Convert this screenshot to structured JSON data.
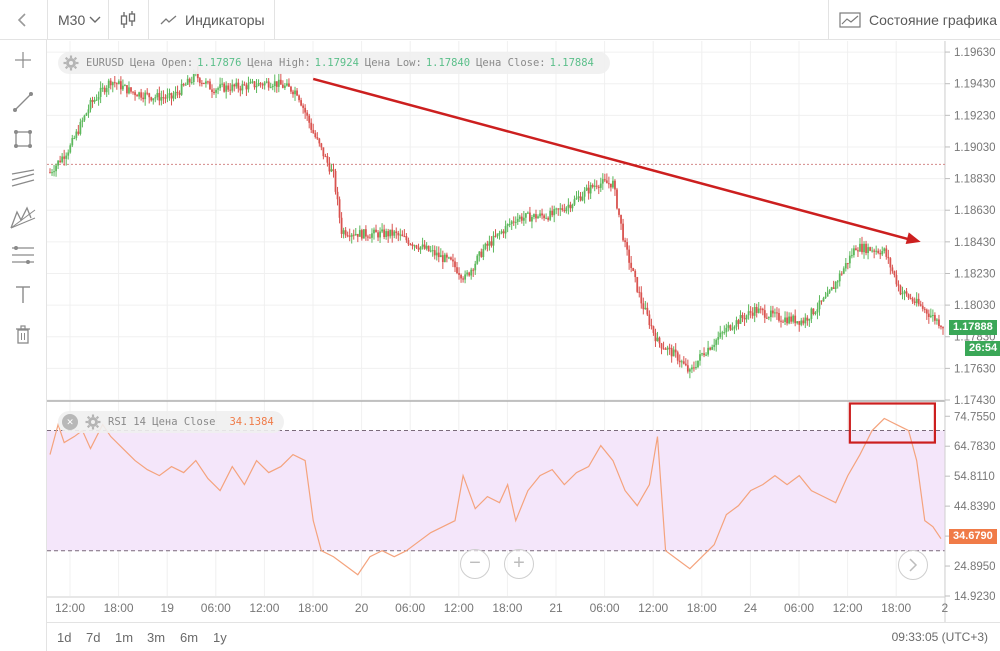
{
  "toolbar": {
    "timeframe": "M30",
    "indicators_label": "Индикаторы",
    "chart_state_label": "Состояние графика"
  },
  "price_legend": {
    "symbol": "EURUSD",
    "open_label": "Цена Open:",
    "open_value": "1.17876",
    "high_label": "Цена High:",
    "high_value": "1.17924",
    "low_label": "Цена Low:",
    "low_value": "1.17840",
    "close_label": "Цена Close:",
    "close_value": "1.17884"
  },
  "rsi_legend": {
    "label": "RSI 14 Цена Close",
    "value": "34.1384"
  },
  "price_axis": {
    "ticks": [
      "1.19630",
      "1.19430",
      "1.19230",
      "1.19030",
      "1.18830",
      "1.18630",
      "1.18430",
      "1.18230",
      "1.18030",
      "1.17830",
      "1.17630",
      "1.17430"
    ],
    "current_price": "1.17888",
    "countdown": "26:54"
  },
  "rsi_axis": {
    "ticks": [
      "74.7550",
      "64.7830",
      "54.8110",
      "44.8390",
      "34.8670",
      "24.8950",
      "14.9230"
    ],
    "current_value": "34.6790"
  },
  "time_axis": {
    "ticks": [
      "12:00",
      "18:00",
      "19",
      "06:00",
      "12:00",
      "18:00",
      "20",
      "06:00",
      "12:00",
      "18:00",
      "21",
      "06:00",
      "12:00",
      "18:00",
      "24",
      "06:00",
      "12:00",
      "18:00",
      "2"
    ]
  },
  "bottom": {
    "ranges": [
      "1d",
      "7d",
      "1m",
      "3m",
      "6m",
      "1y"
    ],
    "clock": "09:33:05 (UTC+3)"
  },
  "colors": {
    "bull": "#5cb85c",
    "bear": "#d9534f",
    "rsi_line": "#f4a37d",
    "rsi_band": "#f4e6fa",
    "arrow": "#cc1f1f",
    "price_tag": "#3aa757",
    "rsi_tag": "#f07b48"
  },
  "chart_data": {
    "type": "candlestick",
    "symbol": "EURUSD",
    "timeframe": "M30",
    "ylim": [
      1.1743,
      1.197
    ],
    "price_profile": [
      [
        0,
        1.1887
      ],
      [
        10,
        1.1903
      ],
      [
        20,
        1.193
      ],
      [
        30,
        1.1945
      ],
      [
        40,
        1.1938
      ],
      [
        50,
        1.1935
      ],
      [
        60,
        1.1934
      ],
      [
        72,
        1.1948
      ],
      [
        80,
        1.194
      ],
      [
        94,
        1.1941
      ],
      [
        110,
        1.1944
      ],
      [
        122,
        1.1938
      ],
      [
        130,
        1.1912
      ],
      [
        140,
        1.1885
      ],
      [
        144,
        1.185
      ],
      [
        154,
        1.1848
      ],
      [
        170,
        1.1848
      ],
      [
        186,
        1.1838
      ],
      [
        198,
        1.183
      ],
      [
        205,
        1.182
      ],
      [
        214,
        1.1838
      ],
      [
        230,
        1.1858
      ],
      [
        248,
        1.186
      ],
      [
        258,
        1.1868
      ],
      [
        270,
        1.188
      ],
      [
        278,
        1.188
      ],
      [
        284,
        1.184
      ],
      [
        292,
        1.1805
      ],
      [
        300,
        1.178
      ],
      [
        310,
        1.177
      ],
      [
        316,
        1.176
      ],
      [
        322,
        1.1772
      ],
      [
        336,
        1.179
      ],
      [
        348,
        1.18
      ],
      [
        360,
        1.1795
      ],
      [
        372,
        1.1793
      ],
      [
        384,
        1.1808
      ],
      [
        398,
        1.184
      ],
      [
        412,
        1.1837
      ],
      [
        420,
        1.1812
      ],
      [
        432,
        1.18
      ],
      [
        441,
        1.179
      ]
    ],
    "last_ohlc": {
      "open": 1.17876,
      "high": 1.17924,
      "low": 1.1784,
      "close": 1.17884
    },
    "current_price": 1.17888,
    "horizontal_line": 1.1892,
    "trend_arrow": {
      "from": [
        130,
        1.1946
      ],
      "to": [
        430,
        1.1843
      ]
    },
    "rsi": {
      "period": 14,
      "ylim": [
        14.923,
        79.5
      ],
      "levels": [
        70,
        30
      ],
      "current": 34.679,
      "points": [
        [
          0,
          62
        ],
        [
          4,
          72
        ],
        [
          7,
          66
        ],
        [
          12,
          68
        ],
        [
          16,
          70
        ],
        [
          20,
          64
        ],
        [
          26,
          72
        ],
        [
          30,
          68
        ],
        [
          36,
          64
        ],
        [
          42,
          60
        ],
        [
          48,
          57
        ],
        [
          54,
          55
        ],
        [
          60,
          58
        ],
        [
          66,
          56
        ],
        [
          72,
          60
        ],
        [
          78,
          54
        ],
        [
          84,
          50
        ],
        [
          90,
          58
        ],
        [
          96,
          52
        ],
        [
          102,
          60
        ],
        [
          108,
          56
        ],
        [
          114,
          58
        ],
        [
          120,
          62
        ],
        [
          126,
          60
        ],
        [
          130,
          40
        ],
        [
          134,
          30
        ],
        [
          140,
          28
        ],
        [
          146,
          25
        ],
        [
          152,
          22
        ],
        [
          158,
          28
        ],
        [
          164,
          30
        ],
        [
          170,
          28
        ],
        [
          176,
          30
        ],
        [
          182,
          33
        ],
        [
          188,
          36
        ],
        [
          194,
          38
        ],
        [
          200,
          40
        ],
        [
          204,
          55
        ],
        [
          210,
          44
        ],
        [
          216,
          48
        ],
        [
          222,
          46
        ],
        [
          226,
          52
        ],
        [
          230,
          40
        ],
        [
          236,
          50
        ],
        [
          242,
          55
        ],
        [
          248,
          57
        ],
        [
          254,
          52
        ],
        [
          260,
          56
        ],
        [
          266,
          58
        ],
        [
          272,
          65
        ],
        [
          278,
          60
        ],
        [
          284,
          50
        ],
        [
          290,
          45
        ],
        [
          296,
          52
        ],
        [
          300,
          68
        ],
        [
          304,
          30
        ],
        [
          310,
          27
        ],
        [
          316,
          24
        ],
        [
          322,
          28
        ],
        [
          328,
          32
        ],
        [
          334,
          42
        ],
        [
          340,
          45
        ],
        [
          346,
          50
        ],
        [
          352,
          52
        ],
        [
          358,
          55
        ],
        [
          364,
          52
        ],
        [
          370,
          55
        ],
        [
          376,
          50
        ],
        [
          382,
          48
        ],
        [
          388,
          46
        ],
        [
          394,
          55
        ],
        [
          400,
          62
        ],
        [
          406,
          70
        ],
        [
          412,
          74
        ],
        [
          418,
          72
        ],
        [
          424,
          70
        ],
        [
          428,
          60
        ],
        [
          432,
          40
        ],
        [
          436,
          38
        ],
        [
          440,
          34
        ]
      ]
    }
  }
}
